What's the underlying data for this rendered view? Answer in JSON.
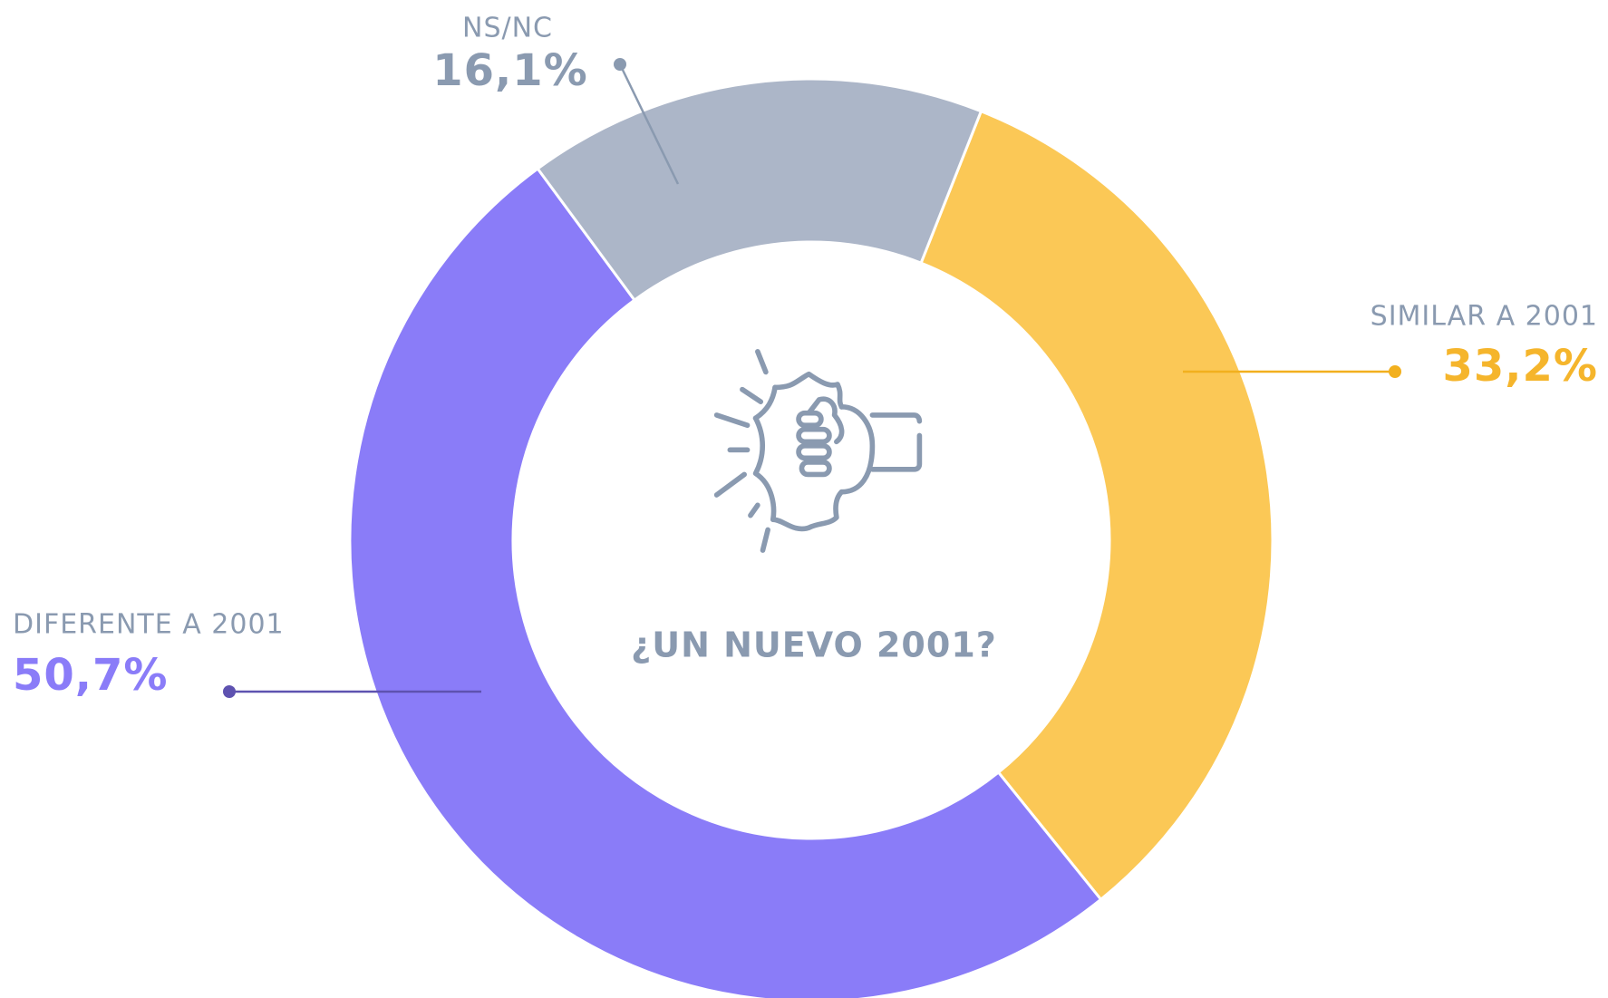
{
  "chart_data": {
    "type": "donut",
    "title": "¿UN NUEVO 2001?",
    "categories": [
      "SIMILAR A 2001",
      "DIFERENTE A 2001",
      "NS/NC"
    ],
    "values": [
      33.2,
      50.7,
      16.1
    ],
    "value_labels": [
      "33,2%",
      "50,7%",
      "16,1%"
    ],
    "colors": [
      "#fbc856",
      "#8a7cf8",
      "#acb6c8"
    ],
    "label_colors": [
      "#f5b52c",
      "#8a7cf8",
      "#8a9ab0"
    ]
  }
}
